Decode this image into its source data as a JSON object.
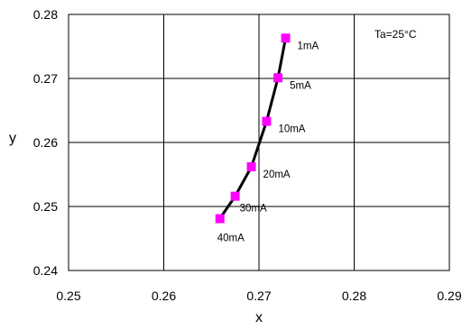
{
  "chart_data": {
    "type": "scatter",
    "title": "",
    "xlabel": "x",
    "ylabel": "y",
    "xlim": [
      0.25,
      0.29
    ],
    "ylim": [
      0.24,
      0.28
    ],
    "x_ticks": [
      "0.25",
      "0.26",
      "0.27",
      "0.28",
      "0.29"
    ],
    "y_ticks": [
      "0.24",
      "0.25",
      "0.26",
      "0.27",
      "0.28"
    ],
    "grid": true,
    "annotation": "Ta=25°C",
    "series": [
      {
        "points": [
          {
            "label": "1mA",
            "x": 0.2728,
            "y": 0.2763
          },
          {
            "label": "5mA",
            "x": 0.272,
            "y": 0.2701
          },
          {
            "label": "10mA",
            "x": 0.2708,
            "y": 0.2633
          },
          {
            "label": "20mA",
            "x": 0.2692,
            "y": 0.2562
          },
          {
            "label": "30mA",
            "x": 0.2675,
            "y": 0.2516
          },
          {
            "label": "40mA",
            "x": 0.2659,
            "y": 0.2481
          }
        ],
        "marker_color": "#ff00ff",
        "line_color": "#000000"
      }
    ]
  }
}
